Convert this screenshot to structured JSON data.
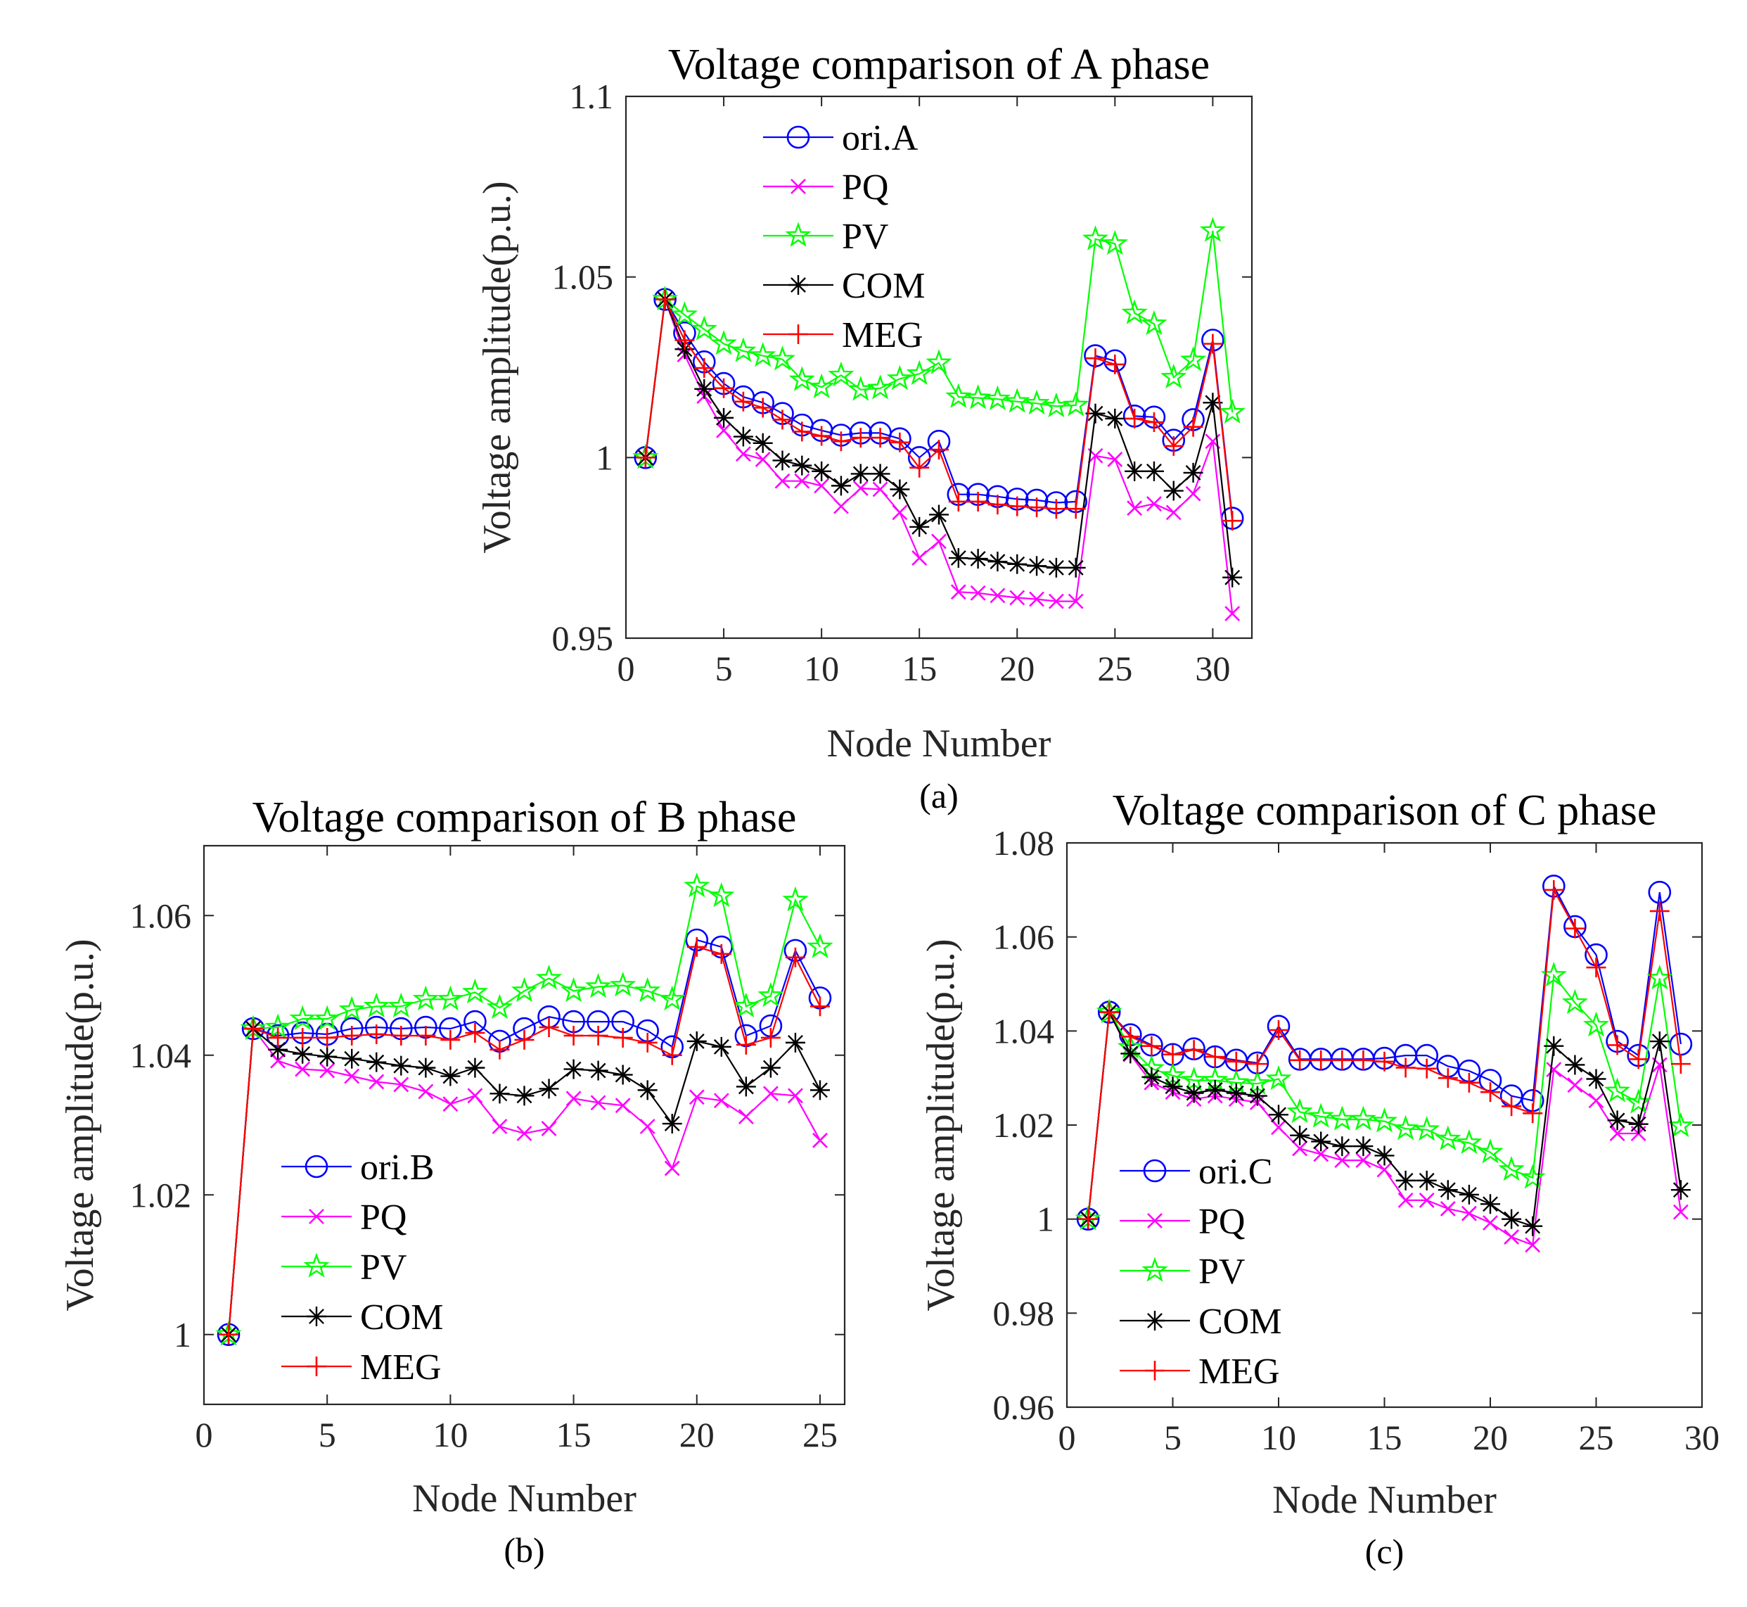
{
  "colors": {
    "ori": "#0000ff",
    "PQ": "#ff00ff",
    "PV": "#00ff00",
    "COM": "#000000",
    "MEG": "#ff0000"
  },
  "chart_data": [
    {
      "id": "a",
      "type": "line",
      "title": "Voltage comparison of A phase",
      "xlabel": "Node Number",
      "ylabel": "Voltage amplitude(p.u.)",
      "caption": "(a)",
      "xlim": [
        0,
        32
      ],
      "ylim": [
        0.95,
        1.1
      ],
      "xticks": [
        0,
        5,
        10,
        15,
        20,
        25,
        30
      ],
      "yticks": [
        0.95,
        1,
        1.05,
        1.1
      ],
      "ytick_labels": [
        "0.95",
        "1",
        "1.05",
        "1.1"
      ],
      "legend": "top-left",
      "x": [
        1,
        2,
        3,
        4,
        5,
        6,
        7,
        8,
        9,
        10,
        11,
        12,
        13,
        14,
        15,
        16,
        17,
        18,
        19,
        20,
        21,
        22,
        23,
        24,
        25,
        26,
        27,
        28,
        29,
        30,
        31
      ],
      "series": [
        {
          "name": "ori.A",
          "key": "ori",
          "marker": "circle",
          "values": [
            1.0,
            1.0438,
            1.0345,
            1.0265,
            1.0205,
            1.0168,
            1.0152,
            1.0122,
            1.009,
            1.0075,
            1.0062,
            1.0068,
            1.0068,
            1.0052,
            1.0,
            1.0045,
            0.9898,
            0.9898,
            0.9892,
            0.9885,
            0.9882,
            0.9875,
            0.9878,
            1.0282,
            1.0268,
            1.0115,
            1.0112,
            1.0048,
            1.0105,
            1.0325,
            0.9832
          ]
        },
        {
          "name": "PQ",
          "key": "PQ",
          "marker": "x",
          "values": [
            1.0,
            1.0438,
            1.0285,
            1.017,
            1.0075,
            1.001,
            0.9995,
            0.9935,
            0.9935,
            0.9922,
            0.9865,
            0.9915,
            0.9912,
            0.9848,
            0.9722,
            0.9768,
            0.9628,
            0.9625,
            0.9618,
            0.9612,
            0.9608,
            0.9602,
            0.9602,
            1.0005,
            0.9995,
            0.986,
            0.9872,
            0.9848,
            0.99,
            1.0045,
            0.9568
          ]
        },
        {
          "name": "PV",
          "key": "PV",
          "marker": "star",
          "values": [
            1.0,
            1.0438,
            1.0395,
            1.0355,
            1.0315,
            1.0295,
            1.0282,
            1.0272,
            1.0215,
            1.0195,
            1.0228,
            1.0188,
            1.0192,
            1.0218,
            1.0232,
            1.0262,
            1.0168,
            1.0165,
            1.0162,
            1.0155,
            1.015,
            1.0142,
            1.0145,
            1.0605,
            1.0592,
            1.04,
            1.037,
            1.0222,
            1.027,
            1.0628,
            1.0125
          ]
        },
        {
          "name": "COM",
          "key": "COM",
          "marker": "asterisk",
          "values": [
            1.0,
            1.0438,
            1.03,
            1.019,
            1.011,
            1.0058,
            1.004,
            0.9992,
            0.9978,
            0.9962,
            0.9922,
            0.9955,
            0.9955,
            0.9912,
            0.9808,
            0.9842,
            0.9722,
            0.972,
            0.9712,
            0.9705,
            0.97,
            0.9695,
            0.9695,
            1.0122,
            1.0108,
            0.9962,
            0.9962,
            0.9908,
            0.9958,
            1.0152,
            0.9668
          ]
        },
        {
          "name": "MEG",
          "key": "MEG",
          "marker": "plus",
          "values": [
            1.0,
            1.0438,
            1.0325,
            1.0248,
            1.0192,
            1.0155,
            1.0138,
            1.0105,
            1.0072,
            1.006,
            1.0045,
            1.0055,
            1.0055,
            1.0042,
            0.9972,
            1.0022,
            0.9878,
            0.9878,
            0.987,
            0.9865,
            0.9862,
            0.9858,
            0.9858,
            1.0275,
            1.0258,
            1.0108,
            1.0098,
            1.0032,
            1.0085,
            1.0315,
            0.9825
          ]
        }
      ]
    },
    {
      "id": "b",
      "type": "line",
      "title": "Voltage comparison of B phase",
      "xlabel": "Node Number",
      "ylabel": "Voltage amplitude(p.u.)",
      "caption": "(b)",
      "xlim": [
        0,
        26
      ],
      "ylim": [
        0.99,
        1.07
      ],
      "xticks": [
        0,
        5,
        10,
        15,
        20,
        25
      ],
      "yticks": [
        1,
        1.02,
        1.04,
        1.06
      ],
      "ytick_labels": [
        "1",
        "1.02",
        "1.04",
        "1.06"
      ],
      "legend": "bottom-left",
      "x": [
        1,
        2,
        3,
        4,
        5,
        6,
        7,
        8,
        9,
        10,
        11,
        12,
        13,
        14,
        15,
        16,
        17,
        18,
        19,
        20,
        21,
        22,
        23,
        24,
        25
      ],
      "series": [
        {
          "name": "ori.B",
          "key": "ori",
          "marker": "circle",
          "values": [
            1.0,
            1.0438,
            1.0428,
            1.0432,
            1.043,
            1.0438,
            1.044,
            1.0438,
            1.044,
            1.0438,
            1.0448,
            1.042,
            1.0438,
            1.0455,
            1.0448,
            1.0448,
            1.0448,
            1.0435,
            1.0412,
            1.0565,
            1.0555,
            1.0428,
            1.0442,
            1.055,
            1.0482
          ]
        },
        {
          "name": "PQ",
          "key": "PQ",
          "marker": "x",
          "values": [
            1.0,
            1.0438,
            1.0392,
            1.038,
            1.0378,
            1.037,
            1.0362,
            1.0358,
            1.0348,
            1.033,
            1.0342,
            1.0298,
            1.0288,
            1.0295,
            1.0338,
            1.0332,
            1.0328,
            1.0298,
            1.0238,
            1.034,
            1.0335,
            1.0312,
            1.0345,
            1.0342,
            1.0278
          ]
        },
        {
          "name": "PV",
          "key": "PV",
          "marker": "star",
          "values": [
            1.0,
            1.0438,
            1.044,
            1.0452,
            1.0452,
            1.0465,
            1.047,
            1.047,
            1.048,
            1.048,
            1.049,
            1.0468,
            1.0492,
            1.051,
            1.0492,
            1.0498,
            1.05,
            1.0492,
            1.048,
            1.0642,
            1.0628,
            1.047,
            1.0485,
            1.0622,
            1.0555
          ]
        },
        {
          "name": "COM",
          "key": "COM",
          "marker": "asterisk",
          "values": [
            1.0,
            1.0438,
            1.0408,
            1.0402,
            1.0398,
            1.0395,
            1.039,
            1.0385,
            1.0382,
            1.037,
            1.0382,
            1.0345,
            1.0342,
            1.0352,
            1.038,
            1.0378,
            1.0372,
            1.035,
            1.0302,
            1.042,
            1.0412,
            1.0355,
            1.0382,
            1.0418,
            1.035
          ]
        },
        {
          "name": "MEG",
          "key": "MEG",
          "marker": "plus",
          "values": [
            1.0,
            1.0438,
            1.0425,
            1.0425,
            1.0425,
            1.0428,
            1.043,
            1.0428,
            1.0428,
            1.0422,
            1.0432,
            1.0408,
            1.0422,
            1.044,
            1.0428,
            1.0428,
            1.0425,
            1.0418,
            1.04,
            1.0555,
            1.0545,
            1.0415,
            1.0425,
            1.054,
            1.047
          ]
        }
      ]
    },
    {
      "id": "c",
      "type": "line",
      "title": "Voltage comparison of C phase",
      "xlabel": "Node Number",
      "ylabel": "Voltage amplitude(p.u.)",
      "caption": "(c)",
      "xlim": [
        0,
        30
      ],
      "ylim": [
        0.96,
        1.08
      ],
      "xticks": [
        0,
        5,
        10,
        15,
        20,
        25,
        30
      ],
      "yticks": [
        0.96,
        0.98,
        1,
        1.02,
        1.04,
        1.06,
        1.08
      ],
      "ytick_labels": [
        "0.96",
        "0.98",
        "1",
        "1.02",
        "1.04",
        "1.06",
        "1.08"
      ],
      "legend": "bottom-left",
      "x": [
        1,
        2,
        3,
        4,
        5,
        6,
        7,
        8,
        9,
        10,
        11,
        12,
        13,
        14,
        15,
        16,
        17,
        18,
        19,
        20,
        21,
        22,
        23,
        24,
        25,
        26,
        27,
        28,
        29
      ],
      "series": [
        {
          "name": "ori.C",
          "key": "ori",
          "marker": "circle",
          "values": [
            1.0,
            1.044,
            1.0392,
            1.037,
            1.035,
            1.0362,
            1.0345,
            1.0338,
            1.0332,
            1.041,
            1.034,
            1.034,
            1.034,
            1.034,
            1.0342,
            1.0348,
            1.0348,
            1.0325,
            1.0315,
            1.0295,
            1.0262,
            1.0252,
            1.0708,
            1.0622,
            1.0562,
            1.0378,
            1.0348,
            1.0695,
            1.0372
          ]
        },
        {
          "name": "PQ",
          "key": "PQ",
          "marker": "x",
          "values": [
            1.0,
            1.044,
            1.035,
            1.029,
            1.027,
            1.0255,
            1.0262,
            1.0255,
            1.0248,
            1.0195,
            1.015,
            1.0138,
            1.0125,
            1.0125,
            1.0105,
            1.004,
            1.004,
            1.0022,
            1.0012,
            0.9992,
            0.9962,
            0.9945,
            1.0318,
            1.0285,
            1.0252,
            1.0182,
            1.0182,
            1.0328,
            1.0015
          ]
        },
        {
          "name": "PV",
          "key": "PV",
          "marker": "star",
          "values": [
            1.0,
            1.044,
            1.0365,
            1.032,
            1.0305,
            1.0295,
            1.0295,
            1.029,
            1.0288,
            1.0298,
            1.0228,
            1.0218,
            1.0212,
            1.0212,
            1.0208,
            1.0192,
            1.019,
            1.017,
            1.0162,
            1.0142,
            1.0105,
            1.0088,
            1.0518,
            1.046,
            1.0412,
            1.0272,
            1.0248,
            1.0512,
            1.0198
          ]
        },
        {
          "name": "COM",
          "key": "COM",
          "marker": "asterisk",
          "values": [
            1.0,
            1.044,
            1.0352,
            1.0302,
            1.0282,
            1.0268,
            1.0275,
            1.0268,
            1.0262,
            1.0222,
            1.0178,
            1.0165,
            1.0155,
            1.0155,
            1.0135,
            1.0082,
            1.0082,
            1.0062,
            1.0052,
            1.0032,
            1.0,
            0.9985,
            1.0368,
            1.0328,
            1.0298,
            1.021,
            1.0202,
            1.0378,
            1.0062
          ]
        },
        {
          "name": "MEG",
          "key": "MEG",
          "marker": "plus",
          "values": [
            1.0,
            1.044,
            1.0388,
            1.0368,
            1.035,
            1.036,
            1.0345,
            1.0335,
            1.033,
            1.0402,
            1.0338,
            1.0338,
            1.0338,
            1.0338,
            1.0335,
            1.0322,
            1.032,
            1.03,
            1.029,
            1.027,
            1.024,
            1.0225,
            1.07,
            1.0618,
            1.0535,
            1.037,
            1.034,
            1.0655,
            1.033
          ]
        }
      ]
    }
  ]
}
